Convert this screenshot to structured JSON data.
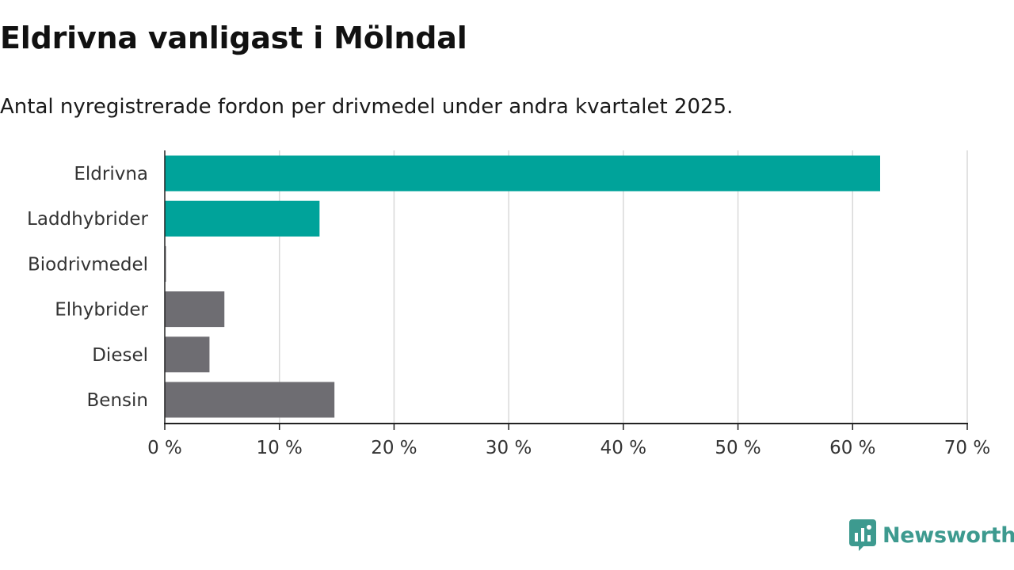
{
  "title": "Eldrivna vanligast i Mölndal",
  "subtitle": "Antal nyregistrerade fordon per drivmedel under andra kvartalet 2025.",
  "brand": {
    "name": "Newsworthy",
    "color": "#3d9a8f",
    "icon": "newsworthy-logo-icon"
  },
  "colors": {
    "highlight": "#00a39a",
    "default": "#6e6d72",
    "grid": "#d9d9d9",
    "axis": "#222222"
  },
  "chart_data": {
    "type": "bar",
    "orientation": "horizontal",
    "categories": [
      "Eldrivna",
      "Laddhybrider",
      "Biodrivmedel",
      "Elhybrider",
      "Diesel",
      "Bensin"
    ],
    "values": [
      62.4,
      13.5,
      0.1,
      5.2,
      3.9,
      14.8
    ],
    "highlighted": [
      true,
      true,
      false,
      false,
      false,
      false
    ],
    "xlim": [
      0,
      70
    ],
    "xticks": [
      0,
      10,
      20,
      30,
      40,
      50,
      60,
      70
    ],
    "tick_suffix": " %",
    "grid": true
  }
}
